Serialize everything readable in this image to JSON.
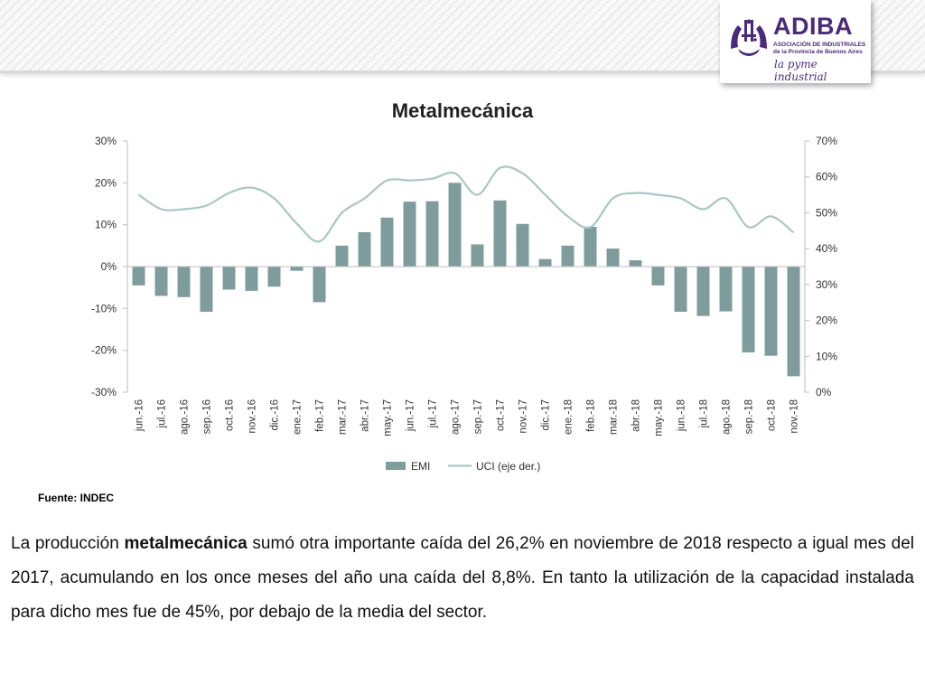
{
  "header": {
    "logo_name": "ADIBA",
    "logo_subtitle": "ASOCIACIÓN DE INDUSTRIALES de la Provincia de Buenos Aires",
    "logo_tagline": "la pyme industrial"
  },
  "chart_data": {
    "type": "bar",
    "title": "Metalmecánica",
    "categories": [
      "jun.-16",
      "jul.-16",
      "ago.-16",
      "sep.-16",
      "oct.-16",
      "nov.-16",
      "dic.-16",
      "ene.-17",
      "feb.-17",
      "mar.-17",
      "abr.-17",
      "may.-17",
      "jun.-17",
      "jul.-17",
      "ago.-17",
      "sep.-17",
      "oct.-17",
      "nov.-17",
      "dic.-17",
      "ene.-18",
      "feb.-18",
      "mar.-18",
      "abr.-18",
      "may.-18",
      "jun.-18",
      "jul.-18",
      "ago.-18",
      "sep.-18",
      "oct.-18",
      "nov.-18"
    ],
    "series": [
      {
        "name": "EMI",
        "type": "bar",
        "axis": "left",
        "color": "#7f9c9c",
        "values": [
          -4.5,
          -7,
          -7.3,
          -10.8,
          -5.5,
          -5.8,
          -4.8,
          -1,
          -8.5,
          5,
          8.2,
          11.7,
          15.5,
          15.6,
          20,
          5.3,
          15.8,
          10.2,
          1.8,
          5,
          9.5,
          4.3,
          1.5,
          -4.5,
          -10.8,
          -11.8,
          -10.7,
          -20.5,
          -21.3,
          -26.2
        ]
      },
      {
        "name": "UCI (eje der.)",
        "type": "line",
        "axis": "right",
        "color": "#a9c6c6",
        "values": [
          55,
          51,
          51,
          52,
          55.5,
          57,
          54,
          47,
          42,
          50,
          54,
          59,
          59,
          59.5,
          61,
          55,
          62.5,
          61,
          55,
          49,
          46,
          54,
          55.5,
          55,
          54,
          51,
          54,
          46,
          49,
          44.5
        ]
      }
    ],
    "y_left_ticks": [
      "30%",
      "20%",
      "10%",
      "0%",
      "-10%",
      "-20%",
      "-30%"
    ],
    "y_right_ticks": [
      "70%",
      "60%",
      "50%",
      "40%",
      "30%",
      "20%",
      "10%",
      "0%"
    ],
    "ylim_left": [
      -30,
      30
    ],
    "ylim_right": [
      0,
      70
    ],
    "legend_position": "bottom",
    "grid": false
  },
  "source": "Fuente: INDEC",
  "paragraph": {
    "p1": "La producción ",
    "bold1": "metalmecánica",
    "p2": " sumó otra importante caída del  26,2% en noviembre de 2018 respecto a igual mes del 2017, acumulando en los once meses del año una caída del 8,8%. En tanto la utilización de la capacidad instalada para dicho mes fue de 45%, por debajo de la media del sector."
  },
  "colors": {
    "brand": "#4b2a7b",
    "bars": "#7f9c9c",
    "line": "#a9c6c6"
  }
}
